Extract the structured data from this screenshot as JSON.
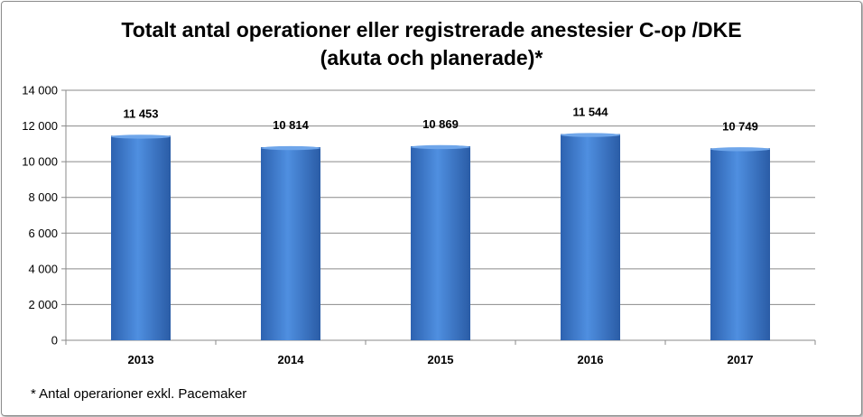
{
  "chart_data": {
    "type": "bar",
    "title_line1": "Totalt antal operationer eller registrerade anestesier C-op /DKE",
    "title_line2": "(akuta och planerade)*",
    "categories": [
      "2013",
      "2014",
      "2015",
      "2016",
      "2017"
    ],
    "values": [
      11453,
      10814,
      10869,
      11544,
      10749
    ],
    "data_labels": [
      "11 453",
      "10 814",
      "10 869",
      "11 544",
      "10 749"
    ],
    "yticks": [
      "0",
      "2 000",
      "4 000",
      "6 000",
      "8 000",
      "10 000",
      "12 000",
      "14 000"
    ],
    "ylim": [
      0,
      14000
    ],
    "ystep": 2000,
    "xlabel": "",
    "ylabel": "",
    "grid": true,
    "legend": "none",
    "bar_color": "#4a86d6",
    "footnote": "* Antal operarioner exkl. Pacemaker"
  }
}
